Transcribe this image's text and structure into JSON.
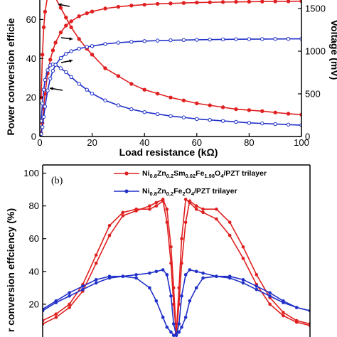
{
  "colors": {
    "red": "#e02020",
    "blue": "#2030c8",
    "axis": "#000000"
  },
  "chart_data": [
    {
      "type": "line",
      "panel_label": "",
      "xlabel": "Load resistance (kΩ)",
      "ylabel_left": "Power conversion efficiency (%)",
      "ylabel_left_visible": "Power conversion efficie",
      "ylabel_right": "Voltage (mV)",
      "xlim": [
        0,
        100
      ],
      "ylim_left": [
        0,
        70
      ],
      "ylim_right": [
        0,
        1600
      ],
      "x_ticks": [
        "0",
        "20",
        "40",
        "60",
        "80",
        "100"
      ],
      "y_ticks_left": [
        "0",
        "20",
        "40",
        "60"
      ],
      "y_ticks_right": [
        "0",
        "500",
        "1000",
        "1500"
      ],
      "x": [
        0.5,
        1,
        1.5,
        2,
        3,
        4,
        5,
        6,
        8,
        10,
        12,
        15,
        18,
        20,
        25,
        30,
        35,
        40,
        45,
        50,
        55,
        60,
        65,
        70,
        75,
        80,
        85,
        90,
        95,
        100
      ],
      "series": [
        {
          "color": "red",
          "axis": "left",
          "marker": "filled-circle",
          "values": [
            20,
            42,
            56,
            64,
            72,
            74,
            73,
            71,
            66,
            61,
            56,
            50,
            45,
            42,
            35,
            31,
            27,
            24,
            22,
            20,
            18.5,
            17,
            16,
            15,
            14,
            13.5,
            13,
            12.3,
            11.7,
            11.2
          ]
        },
        {
          "color": "red",
          "axis": "right",
          "marker": "filled-circle",
          "values": [
            40,
            160,
            330,
            500,
            740,
            900,
            1010,
            1100,
            1220,
            1300,
            1350,
            1410,
            1445,
            1465,
            1500,
            1520,
            1535,
            1545,
            1555,
            1560,
            1565,
            1570,
            1573,
            1576,
            1578,
            1580,
            1582,
            1584,
            1585,
            1586
          ]
        },
        {
          "color": "blue",
          "axis": "left",
          "marker": "open-circle",
          "values": [
            8,
            17,
            24,
            29,
            34,
            36.5,
            37,
            36.8,
            35,
            33,
            30.5,
            27,
            24,
            22,
            18.5,
            16,
            14,
            12.5,
            11.5,
            10.5,
            9.8,
            9,
            8.5,
            8,
            7.5,
            7,
            6.7,
            6.4,
            6.1,
            5.8
          ]
        },
        {
          "color": "blue",
          "axis": "right",
          "marker": "open-circle",
          "values": [
            30,
            110,
            230,
            350,
            540,
            680,
            770,
            840,
            920,
            970,
            1000,
            1030,
            1050,
            1060,
            1085,
            1100,
            1110,
            1118,
            1124,
            1128,
            1131,
            1134,
            1136,
            1138,
            1140,
            1141,
            1142,
            1143,
            1144,
            1145
          ]
        }
      ],
      "annotations": [
        {
          "text": "arrow-left",
          "target_series": 0
        },
        {
          "text": "arrow-right",
          "target_series": 1
        },
        {
          "text": "arrow-right",
          "target_series": 3
        },
        {
          "text": "arrow-left",
          "target_series": 2
        }
      ]
    },
    {
      "type": "line",
      "panel_label": "(b)",
      "ylabel": "Power conversion effciency (%)",
      "ylabel_visible": "r conversion effciency (%)",
      "ylim": [
        0,
        105
      ],
      "y_ticks": [
        "20",
        "40",
        "60",
        "80",
        "100"
      ],
      "legend_position": "top-right",
      "legend": [
        {
          "color": "red",
          "label": "Ni0.8Zn0.2Sm0.02Fe1.98O4/PZT trilayer"
        },
        {
          "color": "blue",
          "label": "Ni0.8Zn0.2Fe2O4/PZT trilayer"
        }
      ],
      "legend_parts": {
        "red": [
          [
            "Ni",
            ""
          ],
          [
            "0.8",
            "sub"
          ],
          [
            "Zn",
            ""
          ],
          [
            "0.2",
            "sub"
          ],
          [
            "Sm",
            ""
          ],
          [
            "0.02",
            "sub"
          ],
          [
            "Fe",
            ""
          ],
          [
            "1.98",
            "sub"
          ],
          [
            "O",
            ""
          ],
          [
            "4",
            "sub"
          ],
          [
            "/PZT trilayer",
            ""
          ]
        ],
        "blue": [
          [
            "Ni",
            ""
          ],
          [
            "0.8",
            "sub"
          ],
          [
            "Zn",
            ""
          ],
          [
            "0.2",
            "sub"
          ],
          [
            "Fe",
            ""
          ],
          [
            "2",
            "sub"
          ],
          [
            "O",
            ""
          ],
          [
            "4",
            "sub"
          ],
          [
            "/PZT trilayer",
            ""
          ]
        ]
      },
      "x": [
        -1.0,
        -0.9,
        -0.8,
        -0.7,
        -0.6,
        -0.5,
        -0.4,
        -0.3,
        -0.2,
        -0.15,
        -0.1,
        -0.07,
        -0.04,
        -0.02,
        0,
        0.02,
        0.04,
        0.07,
        0.1,
        0.15,
        0.2,
        0.3,
        0.4,
        0.5,
        0.6,
        0.7,
        0.8,
        0.9,
        1.0
      ],
      "series": [
        {
          "color": "red",
          "name": "Ni0.8Zn0.2Sm0.02Fe1.98O4/PZT trilayer",
          "values_up": [
            8,
            12,
            18,
            28,
            45,
            62,
            74,
            77,
            80,
            82,
            84,
            78,
            55,
            30,
            2,
            30,
            60,
            84,
            82,
            78,
            76,
            72,
            62,
            48,
            32,
            20,
            13,
            9,
            7
          ],
          "values_down": [
            10,
            14,
            20,
            32,
            50,
            68,
            76,
            78,
            78,
            80,
            83,
            70,
            45,
            20,
            2,
            20,
            45,
            70,
            83,
            80,
            78,
            78,
            70,
            55,
            38,
            24,
            15,
            10,
            8
          ]
        },
        {
          "color": "blue",
          "name": "Ni0.8Zn0.2Fe2O4/PZT trilayer",
          "values_up": [
            16,
            21,
            25,
            29,
            33,
            36,
            37,
            38,
            39,
            40,
            41,
            38,
            25,
            8,
            1,
            8,
            25,
            38,
            41,
            40,
            39,
            37,
            36,
            33,
            29,
            25,
            21,
            18,
            16
          ],
          "values_down": [
            17,
            22,
            27,
            31,
            35,
            37,
            37,
            36,
            30,
            22,
            12,
            6,
            3,
            1,
            1,
            3,
            6,
            12,
            22,
            30,
            36,
            37,
            37,
            35,
            31,
            27,
            22,
            18,
            16
          ]
        }
      ]
    }
  ]
}
